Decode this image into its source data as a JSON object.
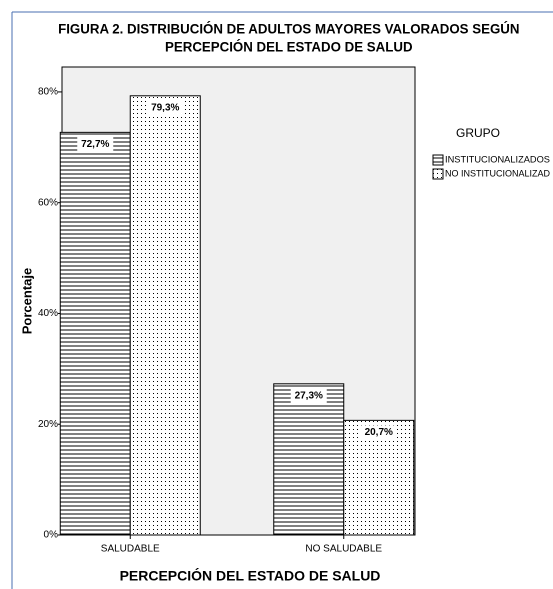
{
  "chart_data": {
    "type": "bar",
    "title": [
      "FIGURA 2. DISTRIBUCIÓN DE ADULTOS MAYORES VALORADOS SEGÚN",
      "PERCEPCIÓN DEL ESTADO DE SALUD"
    ],
    "xlabel": "PERCEPCIÓN DEL ESTADO DE SALUD",
    "ylabel": "Porcentaje",
    "legend_title": "GRUPO",
    "categories": [
      "SALUDABLE",
      "NO SALUDABLE"
    ],
    "series": [
      {
        "name": "INSTITUCIONALIZADOS",
        "pattern": "horizontal-lines",
        "color": "#000000",
        "values": [
          72.7,
          27.3
        ],
        "value_labels": [
          "72,7%",
          "27,3%"
        ]
      },
      {
        "name": "NO INSTITUCIONALIZAD",
        "pattern": "dots",
        "color": "#000000",
        "values": [
          79.3,
          20.7
        ],
        "value_labels": [
          "79,3%",
          "20,7%"
        ]
      }
    ],
    "ylim": [
      0,
      84.5
    ],
    "yticks": [
      {
        "value": 0,
        "label": "0%"
      },
      {
        "value": 20,
        "label": "20%"
      },
      {
        "value": 40,
        "label": "40%"
      },
      {
        "value": 60,
        "label": "60%"
      },
      {
        "value": 80,
        "label": "80%"
      }
    ],
    "legend_position": "right"
  }
}
